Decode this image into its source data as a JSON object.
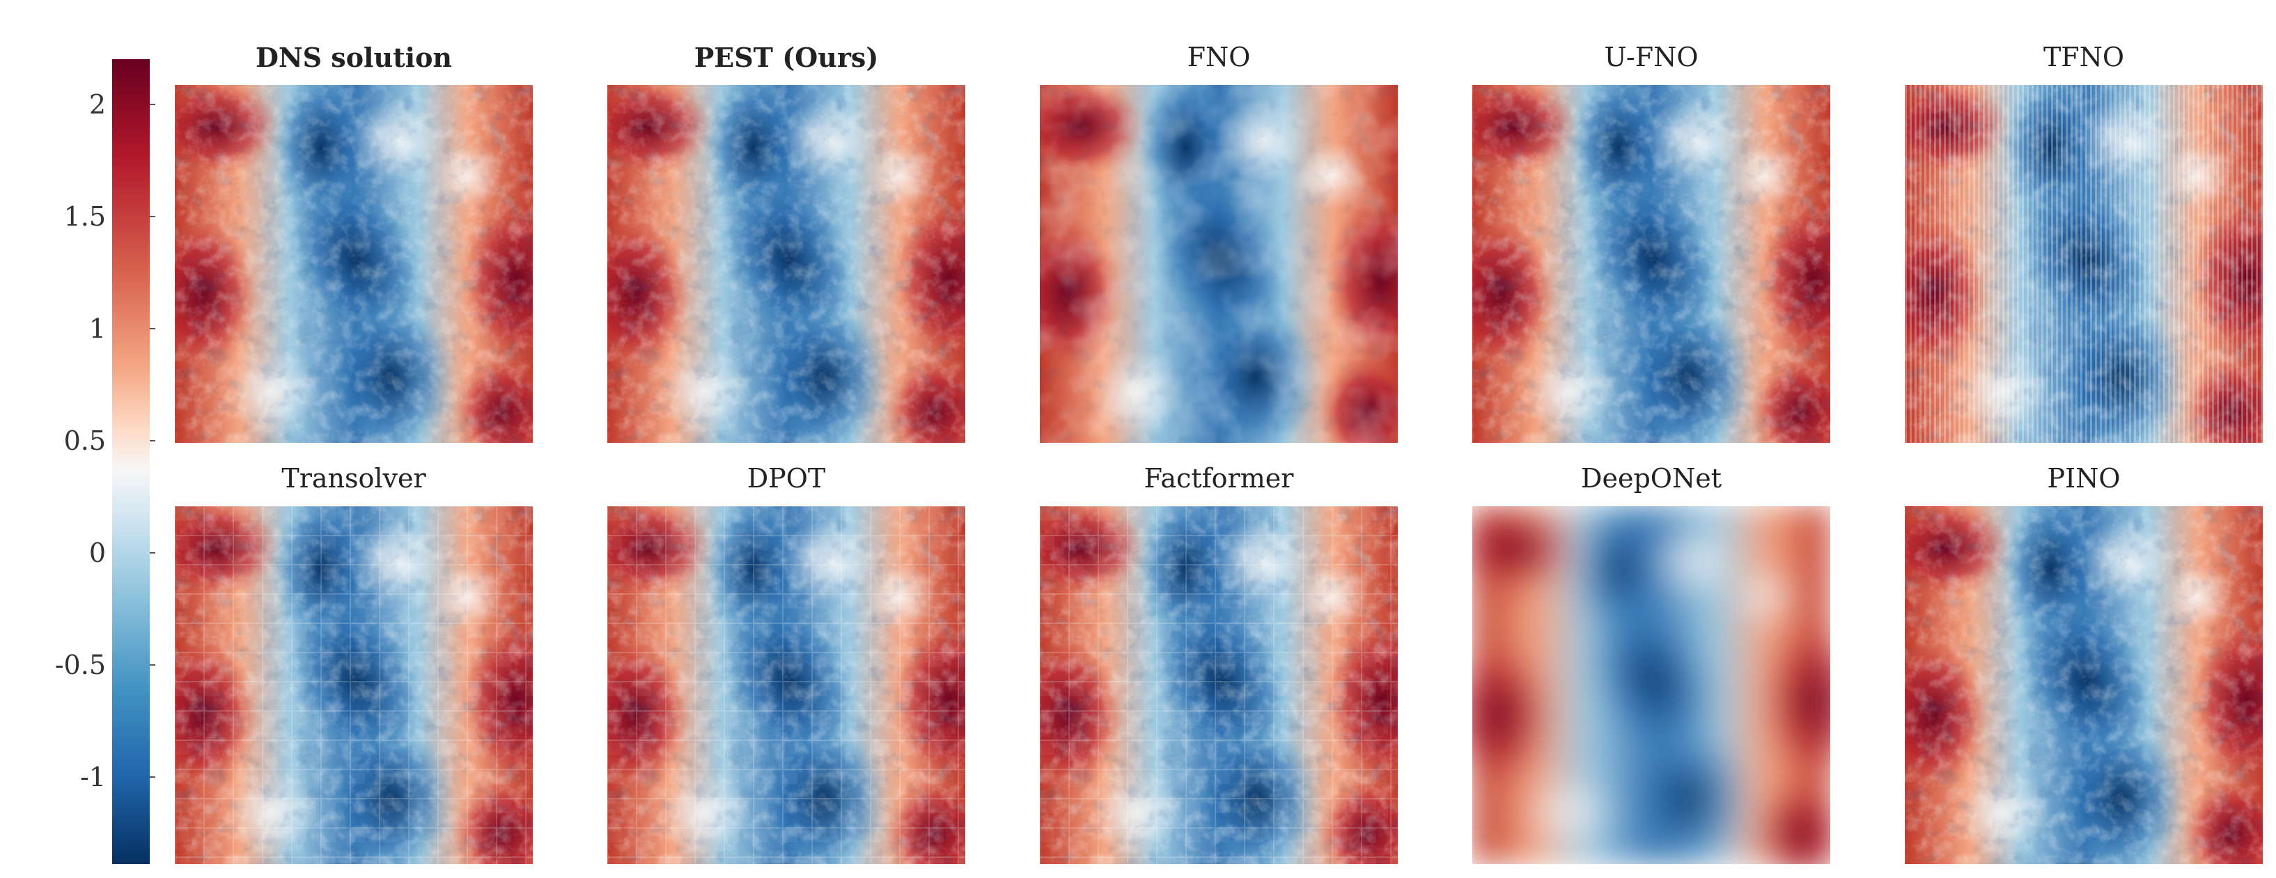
{
  "colorbar": {
    "ticks": [
      "2",
      "1.5",
      "1",
      "0.5",
      "0",
      "-0.5",
      "-1"
    ]
  },
  "panels": [
    {
      "title": "DNS solution",
      "bold": true,
      "style": "dns"
    },
    {
      "title": "PEST (Ours)",
      "bold": true,
      "style": "fine"
    },
    {
      "title": "FNO",
      "bold": false,
      "style": "smooth"
    },
    {
      "title": "U-FNO",
      "bold": false,
      "style": "fine"
    },
    {
      "title": "TFNO",
      "bold": false,
      "style": "stripes"
    },
    {
      "title": "Transolver",
      "bold": false,
      "style": "patchy"
    },
    {
      "title": "DPOT",
      "bold": false,
      "style": "patchy"
    },
    {
      "title": "Factformer",
      "bold": false,
      "style": "patchy"
    },
    {
      "title": "DeepONet",
      "bold": false,
      "style": "blurry"
    },
    {
      "title": "PINO",
      "bold": false,
      "style": "fine"
    }
  ],
  "colormap": [
    "#67001f",
    "#b2182b",
    "#d6604d",
    "#f4a582",
    "#fddbc7",
    "#f7f7f7",
    "#d1e5f0",
    "#92c5de",
    "#4393c3",
    "#2166ac",
    "#053061"
  ]
}
